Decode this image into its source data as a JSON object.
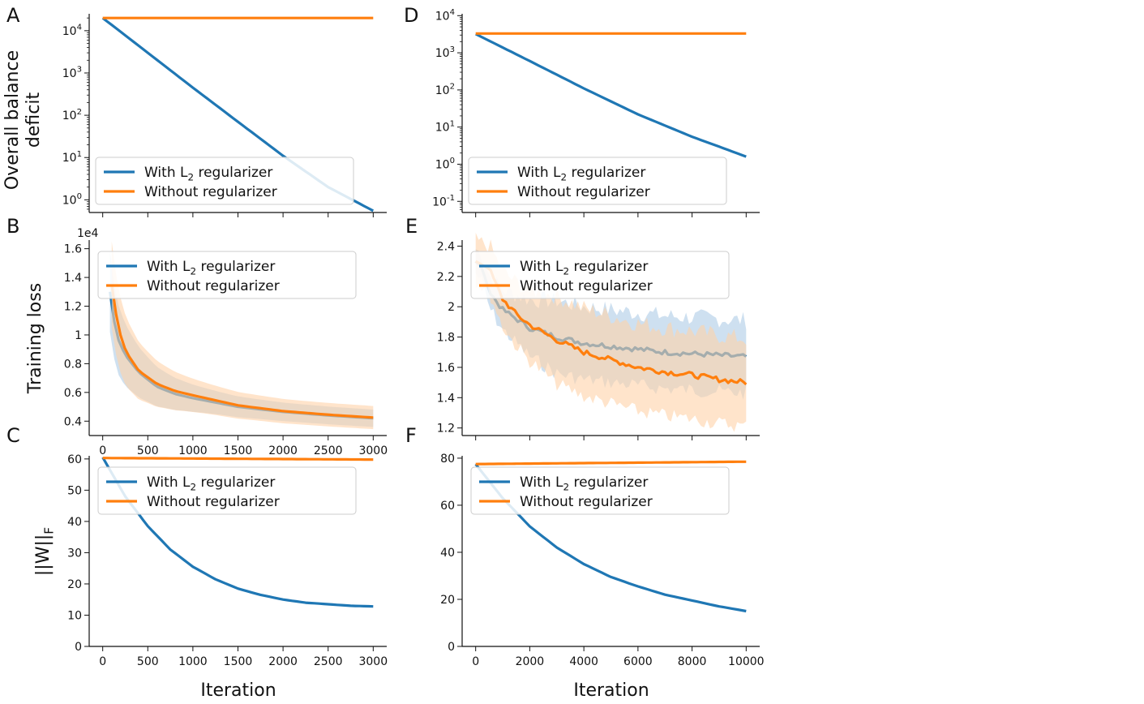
{
  "colors": {
    "blue": "#1f77b4",
    "orange": "#ff7f0e",
    "blue_fill": "#aecbe6",
    "orange_fill": "#ffd2a8"
  },
  "shared": {
    "xlabel": "Iteration",
    "ylabels": {
      "row1": "Overall balance deficit",
      "row2": "Training loss",
      "row3": "||W||_F"
    }
  },
  "chart_data": [
    {
      "panel": "A",
      "type": "line",
      "yscale": "log",
      "ylim_exp": [
        -0.3,
        4.4
      ],
      "xlim": [
        -150,
        3150
      ],
      "yticks": [
        "10^0",
        "10^1",
        "10^2",
        "10^3",
        "10^4"
      ],
      "ytick_exps": [
        0,
        1,
        2,
        3,
        4
      ],
      "xticks": [
        0,
        500,
        1000,
        1500,
        2000,
        2500,
        3000
      ],
      "show_xticklabels": false,
      "legend": {
        "position": "lower-left",
        "entries": [
          "With L_2 regularizer",
          "Without regularizer"
        ]
      },
      "series": [
        {
          "name": "With L_2 regularizer",
          "color": "blue",
          "x": [
            0,
            500,
            1000,
            1500,
            2000,
            2500,
            3000
          ],
          "y": [
            20000,
            3000,
            450,
            70,
            11,
            2.0,
            0.55
          ]
        },
        {
          "name": "Without regularizer",
          "color": "orange",
          "x": [
            0,
            3000
          ],
          "y": [
            20000,
            20000
          ]
        }
      ]
    },
    {
      "panel": "D",
      "type": "line",
      "yscale": "log",
      "ylim_exp": [
        -1.3,
        4.05
      ],
      "xlim": [
        -500,
        10500
      ],
      "yticks": [
        "10^-1",
        "10^0",
        "10^1",
        "10^2",
        "10^3",
        "10^4"
      ],
      "ytick_exps": [
        -1,
        0,
        1,
        2,
        3,
        4
      ],
      "xticks": [
        0,
        2000,
        4000,
        6000,
        8000,
        10000
      ],
      "show_xticklabels": false,
      "legend": {
        "position": "lower-left",
        "entries": [
          "With L_2 regularizer",
          "Without regularizer"
        ]
      },
      "series": [
        {
          "name": "With L_2 regularizer",
          "color": "blue",
          "x": [
            0,
            2000,
            4000,
            6000,
            8000,
            10000
          ],
          "y": [
            3200,
            600,
            110,
            22,
            5.5,
            1.6
          ]
        },
        {
          "name": "Without regularizer",
          "color": "orange",
          "x": [
            0,
            10000
          ],
          "y": [
            3300,
            3300
          ]
        }
      ]
    },
    {
      "panel": "B",
      "type": "line",
      "offset_label": "1e4",
      "ylim": [
        0.3,
        1.66
      ],
      "xlim": [
        -150,
        3150
      ],
      "yticks": [
        0.4,
        0.6,
        0.8,
        1.0,
        1.2,
        1.4,
        1.6
      ],
      "xticks": [
        0,
        500,
        1000,
        1500,
        2000,
        2500,
        3000
      ],
      "show_xticklabels": true,
      "legend": {
        "position": "upper-right",
        "entries": [
          "With L_2 regularizer",
          "Without regularizer"
        ]
      },
      "series": [
        {
          "name": "With L_2 regularizer",
          "color": "blue",
          "x": [
            80,
            150,
            250,
            400,
            600,
            800,
            1000,
            1500,
            2000,
            2500,
            3000
          ],
          "y": [
            1.3,
            1.0,
            0.86,
            0.74,
            0.64,
            0.59,
            0.56,
            0.5,
            0.465,
            0.44,
            0.42
          ]
        },
        {
          "name": "Without regularizer",
          "color": "orange",
          "x": [
            100,
            170,
            260,
            400,
            600,
            800,
            1000,
            1500,
            2000,
            2500,
            3000
          ],
          "y": [
            1.35,
            1.05,
            0.88,
            0.75,
            0.66,
            0.61,
            0.58,
            0.51,
            0.47,
            0.445,
            0.425
          ]
        }
      ]
    },
    {
      "panel": "E",
      "type": "line",
      "ylim": [
        1.15,
        2.44
      ],
      "xlim": [
        -500,
        10500
      ],
      "yticks": [
        1.2,
        1.4,
        1.6,
        1.8,
        2.0,
        2.2,
        2.4
      ],
      "xticks": [
        0,
        2000,
        4000,
        6000,
        8000,
        10000
      ],
      "show_xticklabels": false,
      "legend": {
        "position": "upper-right",
        "entries": [
          "With L_2 regularizer",
          "Without regularizer"
        ]
      },
      "series": [
        {
          "name": "With L_2 regularizer",
          "color": "blue",
          "x": [
            0,
            250,
            500,
            1000,
            1500,
            2000,
            3000,
            4000,
            5000,
            6000,
            7000,
            8000,
            9000,
            10000
          ],
          "y": [
            2.3,
            2.25,
            2.1,
            1.98,
            1.92,
            1.86,
            1.8,
            1.76,
            1.74,
            1.72,
            1.7,
            1.69,
            1.68,
            1.67
          ]
        },
        {
          "name": "Without regularizer",
          "color": "orange",
          "x": [
            0,
            500,
            1000,
            1500,
            2000,
            3000,
            4000,
            5000,
            6000,
            7000,
            8000,
            9000,
            10000
          ],
          "y": [
            2.3,
            2.25,
            2.05,
            1.95,
            1.88,
            1.78,
            1.7,
            1.65,
            1.6,
            1.57,
            1.55,
            1.52,
            1.5
          ]
        }
      ]
    },
    {
      "panel": "C",
      "type": "line",
      "ylim": [
        0,
        61
      ],
      "xlim": [
        -150,
        3150
      ],
      "yticks": [
        0,
        10,
        20,
        30,
        40,
        50,
        60
      ],
      "xticks": [
        0,
        500,
        1000,
        1500,
        2000,
        2500,
        3000
      ],
      "show_xticklabels": true,
      "legend": {
        "position": "upper-right",
        "entries": [
          "With L_2 regularizer",
          "Without regularizer"
        ]
      },
      "series": [
        {
          "name": "With L_2 regularizer",
          "color": "blue",
          "x": [
            0,
            250,
            500,
            750,
            1000,
            1250,
            1500,
            1750,
            2000,
            2250,
            2500,
            2750,
            3000
          ],
          "y": [
            60.5,
            48,
            38.5,
            31,
            25.5,
            21.5,
            18.5,
            16.5,
            15,
            14,
            13.5,
            13,
            12.8
          ]
        },
        {
          "name": "Without regularizer",
          "color": "orange",
          "x": [
            0,
            3000
          ],
          "y": [
            60.3,
            59.8
          ]
        }
      ]
    },
    {
      "panel": "F",
      "type": "line",
      "ylim": [
        0,
        81
      ],
      "xlim": [
        -500,
        10500
      ],
      "yticks": [
        0,
        20,
        40,
        60,
        80
      ],
      "xticks": [
        0,
        2000,
        4000,
        6000,
        8000,
        10000
      ],
      "show_xticklabels": true,
      "legend": {
        "position": "upper-right",
        "entries": [
          "With L_2 regularizer",
          "Without regularizer"
        ]
      },
      "series": [
        {
          "name": "With L_2 regularizer",
          "color": "blue",
          "x": [
            0,
            1000,
            2000,
            3000,
            4000,
            5000,
            6000,
            7000,
            8000,
            9000,
            10000
          ],
          "y": [
            77.5,
            63,
            51,
            42,
            35,
            29.5,
            25.5,
            22,
            19.5,
            17,
            15
          ]
        },
        {
          "name": "Without regularizer",
          "color": "orange",
          "x": [
            0,
            10000
          ],
          "y": [
            77.5,
            78.5
          ]
        }
      ]
    }
  ]
}
